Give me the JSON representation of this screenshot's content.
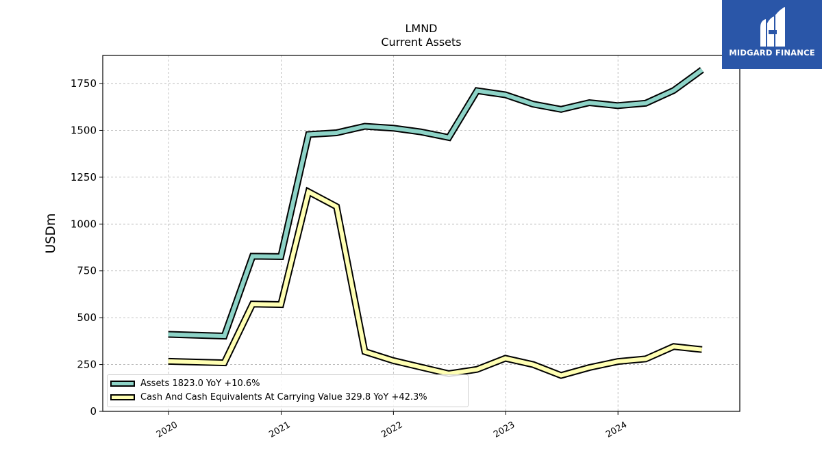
{
  "title": "LMND",
  "subtitle": "Current  Assets",
  "logo_text": "MIDGARD FINANCE",
  "chart_data": {
    "type": "line",
    "title": "LMND",
    "subtitle": "Current  Assets",
    "xlabel": "",
    "ylabel": "USDm",
    "ylim": [
      0,
      1900
    ],
    "yticks": [
      0,
      250,
      500,
      750,
      1000,
      1250,
      1500,
      1750
    ],
    "xticks": [
      "2020",
      "2021",
      "2022",
      "2023",
      "2024"
    ],
    "grid": true,
    "legend_position": "lower-left",
    "x": [
      "2019-12-31",
      "2020-06-30",
      "2020-09-30",
      "2020-12-31",
      "2021-03-31",
      "2021-06-30",
      "2021-09-30",
      "2021-12-31",
      "2022-03-31",
      "2022-06-30",
      "2022-09-30",
      "2022-12-31",
      "2023-03-31",
      "2023-06-30",
      "2023-09-30",
      "2023-12-31",
      "2024-03-31",
      "2024-06-30",
      "2024-09-30"
    ],
    "series": [
      {
        "name": "Assets  1823.0 YoY +10.6%",
        "color": "#8dd3c7",
        "values": [
          411,
          402,
          828,
          826,
          1478,
          1487,
          1522,
          1512,
          1492,
          1462,
          1712,
          1690,
          1640,
          1612,
          1648,
          1632,
          1645,
          1713,
          1823
        ]
      },
      {
        "name": "Cash And Cash Equivalents At Carrying Value  329.8 YoY +42.3%",
        "color": "#ffffb3",
        "values": [
          267,
          259,
          573,
          570,
          1172,
          1093,
          319,
          271,
          236,
          201,
          224,
          283,
          250,
          192,
          234,
          266,
          280,
          346,
          330
        ]
      }
    ]
  }
}
